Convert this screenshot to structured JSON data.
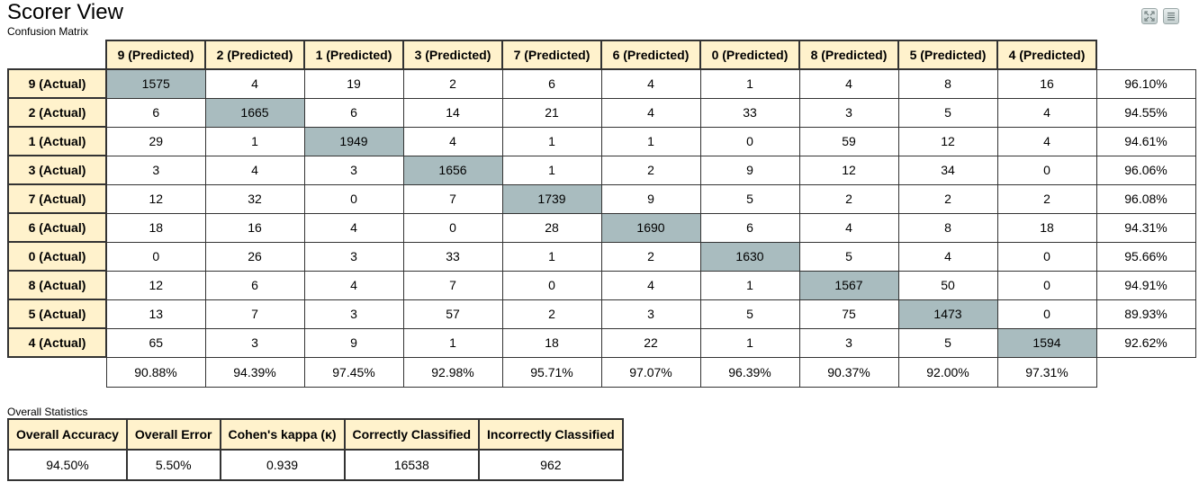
{
  "page": {
    "title": "Scorer View",
    "subtitle": "Confusion Matrix",
    "toolbar": {
      "fullscreen_icon": "fullscreen-icon",
      "menu_icon": "menu-icon"
    }
  },
  "colors": {
    "header_bg": "#fff2cc",
    "diagonal_bg": "#a9bcbf",
    "border": "#333333"
  },
  "matrix": {
    "col_headers": [
      "9 (Predicted)",
      "2 (Predicted)",
      "1 (Predicted)",
      "3 (Predicted)",
      "7 (Predicted)",
      "6 (Predicted)",
      "0 (Predicted)",
      "8 (Predicted)",
      "5 (Predicted)",
      "4 (Predicted)"
    ],
    "rows": [
      {
        "label": "9 (Actual)",
        "values": [
          "1575",
          "4",
          "19",
          "2",
          "6",
          "4",
          "1",
          "4",
          "8",
          "16"
        ],
        "accuracy": "96.10%"
      },
      {
        "label": "2 (Actual)",
        "values": [
          "6",
          "1665",
          "6",
          "14",
          "21",
          "4",
          "33",
          "3",
          "5",
          "4"
        ],
        "accuracy": "94.55%"
      },
      {
        "label": "1 (Actual)",
        "values": [
          "29",
          "1",
          "1949",
          "4",
          "1",
          "1",
          "0",
          "59",
          "12",
          "4"
        ],
        "accuracy": "94.61%"
      },
      {
        "label": "3 (Actual)",
        "values": [
          "3",
          "4",
          "3",
          "1656",
          "1",
          "2",
          "9",
          "12",
          "34",
          "0"
        ],
        "accuracy": "96.06%"
      },
      {
        "label": "7 (Actual)",
        "values": [
          "12",
          "32",
          "0",
          "7",
          "1739",
          "9",
          "5",
          "2",
          "2",
          "2"
        ],
        "accuracy": "96.08%"
      },
      {
        "label": "6 (Actual)",
        "values": [
          "18",
          "16",
          "4",
          "0",
          "28",
          "1690",
          "6",
          "4",
          "8",
          "18"
        ],
        "accuracy": "94.31%"
      },
      {
        "label": "0 (Actual)",
        "values": [
          "0",
          "26",
          "3",
          "33",
          "1",
          "2",
          "1630",
          "5",
          "4",
          "0"
        ],
        "accuracy": "95.66%"
      },
      {
        "label": "8 (Actual)",
        "values": [
          "12",
          "6",
          "4",
          "7",
          "0",
          "4",
          "1",
          "1567",
          "50",
          "0"
        ],
        "accuracy": "94.91%"
      },
      {
        "label": "5 (Actual)",
        "values": [
          "13",
          "7",
          "3",
          "57",
          "2",
          "3",
          "5",
          "75",
          "1473",
          "0"
        ],
        "accuracy": "89.93%"
      },
      {
        "label": "4 (Actual)",
        "values": [
          "65",
          "3",
          "9",
          "1",
          "18",
          "22",
          "1",
          "3",
          "5",
          "1594"
        ],
        "accuracy": "92.62%"
      }
    ],
    "col_accuracy": [
      "90.88%",
      "94.39%",
      "97.45%",
      "92.98%",
      "95.71%",
      "97.07%",
      "96.39%",
      "90.37%",
      "92.00%",
      "97.31%"
    ]
  },
  "overall": {
    "label": "Overall Statistics",
    "headers": [
      "Overall Accuracy",
      "Overall Error",
      "Cohen's kappa (κ)",
      "Correctly Classified",
      "Incorrectly Classified"
    ],
    "values": [
      "94.50%",
      "5.50%",
      "0.939",
      "16538",
      "962"
    ]
  }
}
